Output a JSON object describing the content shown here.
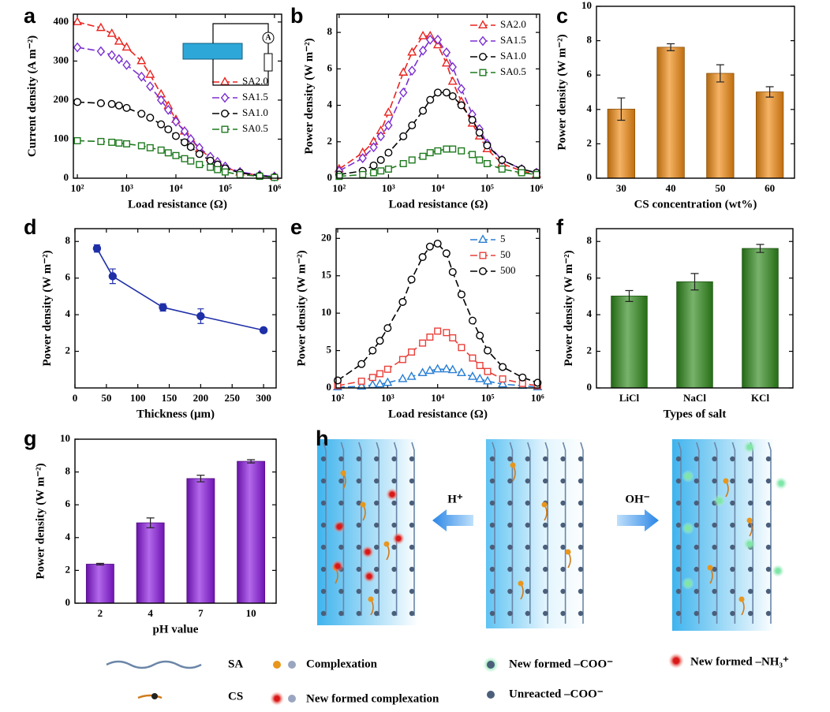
{
  "chart_data": [
    {
      "type": "line",
      "panel": "a",
      "xscale": "log",
      "xlabel": "Load resistance (Ω)",
      "ylabel": "Current density (A m⁻²)",
      "xlim": [
        83,
        1400000
      ],
      "ylim": [
        0,
        420
      ],
      "xticks": [
        {
          "value": 100,
          "label": "10²"
        },
        {
          "value": 1000,
          "label": "10³"
        },
        {
          "value": 10000,
          "label": "10⁴"
        },
        {
          "value": 100000,
          "label": "10⁵"
        },
        {
          "value": 1000000,
          "label": "10⁶"
        }
      ],
      "yticks": [
        0,
        100,
        200,
        300,
        400
      ],
      "legend": "center right",
      "x": [
        100,
        300,
        500,
        700,
        1000,
        2000,
        3000,
        5000,
        7000,
        10000,
        15000,
        20000,
        30000,
        50000,
        70000,
        100000,
        200000,
        500000,
        1000000
      ],
      "series": [
        {
          "name": "SA2.0",
          "color": "#e8231f",
          "marker": "triangle",
          "line_style": "dashed",
          "values": [
            400,
            385,
            370,
            350,
            335,
            300,
            265,
            215,
            185,
            150,
            120,
            100,
            75,
            52,
            40,
            28,
            15,
            7,
            4
          ]
        },
        {
          "name": "SA1.5",
          "color": "#7b2fd0",
          "marker": "diamond",
          "line_style": "dashed",
          "values": [
            335,
            325,
            315,
            305,
            290,
            260,
            235,
            200,
            175,
            145,
            120,
            100,
            78,
            55,
            42,
            30,
            16,
            8,
            4
          ]
        },
        {
          "name": "SA1.0",
          "color": "#000000",
          "marker": "circle",
          "line_style": "dashed",
          "values": [
            195,
            192,
            190,
            186,
            180,
            165,
            155,
            138,
            125,
            108,
            92,
            80,
            62,
            45,
            35,
            25,
            14,
            6,
            3
          ]
        },
        {
          "name": "SA0.5",
          "color": "#1f7a1f",
          "marker": "square",
          "line_style": "dashed",
          "values": [
            96,
            94,
            92,
            90,
            88,
            83,
            78,
            72,
            65,
            58,
            50,
            44,
            35,
            28,
            22,
            16,
            9,
            5,
            2
          ]
        }
      ]
    },
    {
      "type": "line",
      "panel": "b",
      "xscale": "log",
      "xlabel": "Load resistance (Ω)",
      "ylabel": "Power density (W m⁻²)",
      "xlim": [
        90,
        1160000
      ],
      "ylim": [
        0,
        9
      ],
      "xticks": [
        {
          "value": 100,
          "label": "10²"
        },
        {
          "value": 1000,
          "label": "10³"
        },
        {
          "value": 10000,
          "label": "10⁴"
        },
        {
          "value": 100000,
          "label": "10⁵"
        },
        {
          "value": 1000000,
          "label": "10⁶"
        }
      ],
      "yticks": [
        0,
        2,
        4,
        6,
        8
      ],
      "legend": "upper right",
      "x": [
        100,
        300,
        500,
        700,
        1000,
        2000,
        3000,
        5000,
        7000,
        10000,
        15000,
        20000,
        30000,
        50000,
        70000,
        100000,
        200000,
        500000,
        1000000
      ],
      "series": [
        {
          "name": "SA2.0",
          "color": "#e8231f",
          "marker": "triangle",
          "line_style": "dashed",
          "values": [
            0.5,
            1.4,
            2.0,
            2.6,
            3.6,
            5.8,
            6.9,
            7.8,
            7.8,
            7.3,
            6.3,
            5.3,
            4.2,
            3.0,
            2.3,
            1.6,
            0.8,
            0.4,
            0.2
          ]
        },
        {
          "name": "SA1.5",
          "color": "#7b2fd0",
          "marker": "diamond",
          "line_style": "dashed",
          "values": [
            0.4,
            1.1,
            1.7,
            2.3,
            2.9,
            4.7,
            5.9,
            7.0,
            7.6,
            7.6,
            6.9,
            6.1,
            4.9,
            3.5,
            2.7,
            1.9,
            1.0,
            0.5,
            0.3
          ]
        },
        {
          "name": "SA1.0",
          "color": "#000000",
          "marker": "circle",
          "line_style": "dashed",
          "values": [
            0.2,
            0.4,
            0.7,
            1.0,
            1.4,
            2.3,
            2.9,
            3.7,
            4.3,
            4.7,
            4.7,
            4.5,
            4.0,
            3.2,
            2.5,
            1.8,
            1.0,
            0.5,
            0.3
          ]
        },
        {
          "name": "SA0.5",
          "color": "#1f7a1f",
          "marker": "square",
          "line_style": "dashed",
          "values": [
            0.1,
            0.2,
            0.3,
            0.4,
            0.5,
            0.8,
            1.0,
            1.2,
            1.4,
            1.5,
            1.6,
            1.6,
            1.5,
            1.3,
            1.0,
            0.8,
            0.5,
            0.3,
            0.2
          ]
        }
      ]
    },
    {
      "type": "bar",
      "panel": "c",
      "xlabel": "CS concentration (wt%)",
      "ylabel": "Power density (W m⁻²)",
      "categories": [
        "30",
        "40",
        "50",
        "60"
      ],
      "values": [
        4.02,
        7.62,
        6.1,
        5.02
      ],
      "errors": [
        0.65,
        0.2,
        0.5,
        0.3
      ],
      "color": "#f08a12",
      "ylim": [
        0,
        10
      ],
      "yticks": [
        0,
        2,
        4,
        6,
        8,
        10
      ]
    },
    {
      "type": "line",
      "panel": "d",
      "xlabel": "Thickness (μm)",
      "ylabel": "Power density (W m⁻²)",
      "xlim": [
        0,
        320
      ],
      "ylim": [
        0,
        8.7
      ],
      "xticks": [
        0,
        50,
        100,
        150,
        200,
        250,
        300
      ],
      "yticks": [
        2,
        4,
        6,
        8
      ],
      "x": [
        35,
        60,
        140,
        200,
        300
      ],
      "series": [
        {
          "color": "#1f2fa8",
          "marker": "filled-circle",
          "line_style": "solid",
          "values": [
            7.62,
            6.1,
            4.4,
            3.92,
            3.15
          ],
          "errors": [
            0.2,
            0.4,
            0.2,
            0.4,
            0.1
          ]
        }
      ]
    },
    {
      "type": "line",
      "panel": "e",
      "xscale": "log",
      "xlabel": "Load resistance (Ω)",
      "ylabel": "Power density (W m⁻²)",
      "xlim": [
        93,
        1100000
      ],
      "ylim": [
        0,
        21.3
      ],
      "xticks": [
        {
          "value": 100,
          "label": "10²"
        },
        {
          "value": 1000,
          "label": "10³"
        },
        {
          "value": 10000,
          "label": "10⁴"
        },
        {
          "value": 100000,
          "label": "10⁵"
        },
        {
          "value": 1000000,
          "label": "10⁶"
        }
      ],
      "yticks": [
        0,
        5,
        10,
        15,
        20
      ],
      "legend": "upper right",
      "x": [
        100,
        300,
        500,
        700,
        1000,
        2000,
        3000,
        5000,
        7000,
        10000,
        15000,
        20000,
        30000,
        50000,
        70000,
        100000,
        200000,
        500000,
        1000000
      ],
      "series": [
        {
          "name": "5",
          "color": "#2a7fd4",
          "marker": "triangle",
          "line_style": "dashed",
          "values": [
            0.1,
            0.2,
            0.4,
            0.5,
            0.7,
            1.2,
            1.5,
            2.0,
            2.3,
            2.5,
            2.5,
            2.4,
            2.0,
            1.5,
            1.2,
            0.9,
            0.5,
            0.3,
            0.1
          ]
        },
        {
          "name": "50",
          "color": "#e8403a",
          "marker": "square",
          "line_style": "dashed",
          "values": [
            0.3,
            0.9,
            1.4,
            1.9,
            2.5,
            3.8,
            4.8,
            6.0,
            6.8,
            7.6,
            7.4,
            6.7,
            5.4,
            4.0,
            3.0,
            2.2,
            1.2,
            0.6,
            0.3
          ]
        },
        {
          "name": "500",
          "color": "#000000",
          "marker": "circle",
          "line_style": "dashed",
          "values": [
            1.0,
            3.2,
            5.0,
            6.3,
            8.0,
            11.5,
            14.5,
            17.5,
            18.9,
            19.3,
            18.0,
            15.5,
            12.5,
            9.0,
            7.0,
            5.0,
            2.8,
            1.4,
            0.7
          ]
        }
      ]
    },
    {
      "type": "bar",
      "panel": "f",
      "xlabel": "Types of salt",
      "ylabel": "Power density (W m⁻²)",
      "categories": [
        "LiCl",
        "NaCl",
        "KCl"
      ],
      "values": [
        5.02,
        5.8,
        7.62
      ],
      "errors": [
        0.3,
        0.45,
        0.22
      ],
      "color": "#2f8a1c",
      "ylim": [
        0,
        8.7
      ],
      "yticks": [
        0,
        2,
        4,
        6,
        8
      ]
    },
    {
      "type": "bar",
      "panel": "g",
      "xlabel": "pH value",
      "ylabel": "Power density (W m⁻²)",
      "categories": [
        "2",
        "4",
        "7",
        "10"
      ],
      "values": [
        2.38,
        4.9,
        7.6,
        8.65
      ],
      "errors": [
        0.05,
        0.3,
        0.2,
        0.1
      ],
      "color": "#8a18e0",
      "ylim": [
        0,
        10
      ],
      "yticks": [
        0,
        2,
        4,
        6,
        8,
        10
      ]
    }
  ],
  "diagram": {
    "panel": "h",
    "acid_label": "H⁺",
    "base_label": "OH⁻",
    "legend": [
      "SA",
      "Complexation",
      "New formed –COO⁻",
      "New formed –NH₃⁺",
      "CS",
      "New formed complexation",
      "Unreacted –COO⁻"
    ]
  }
}
